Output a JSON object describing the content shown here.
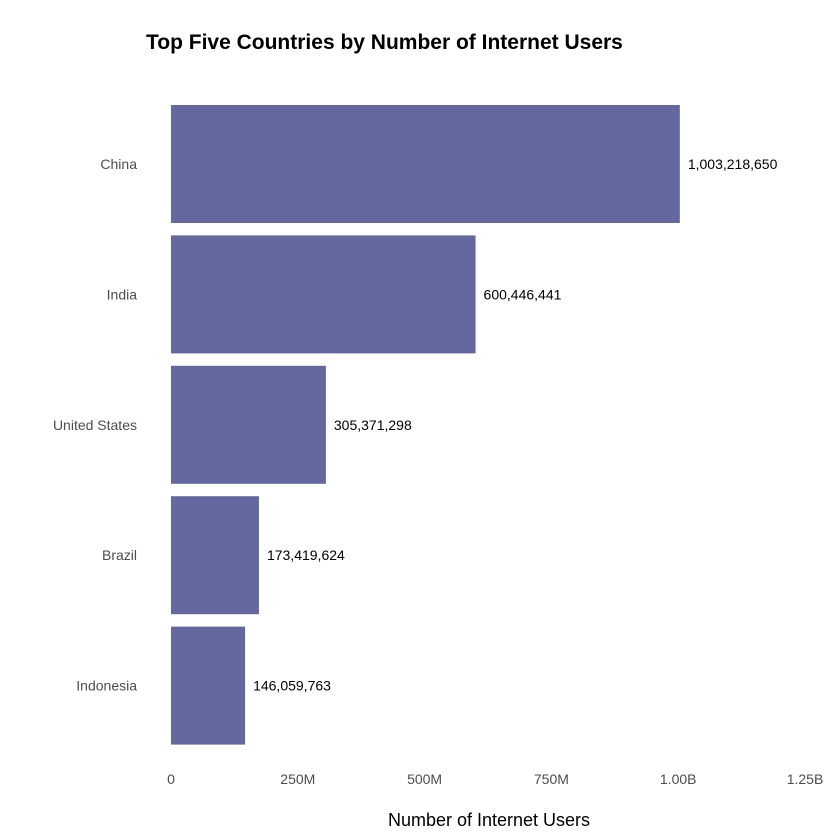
{
  "chart_data": {
    "type": "bar",
    "orientation": "horizontal",
    "title": "Top Five Countries by Number of Internet Users",
    "xlabel": "Number of Internet Users",
    "ylabel": "",
    "categories": [
      "China",
      "India",
      "United States",
      "Brazil",
      "Indonesia"
    ],
    "values": [
      1003218650,
      600446441,
      305371298,
      173419624,
      146059763
    ],
    "value_labels": [
      "1,003,218,650",
      "600,446,441",
      "305,371,298",
      "173,419,624",
      "146,059,763"
    ],
    "xlim": [
      0,
      1250000000
    ],
    "x_ticks": [
      0,
      250000000,
      500000000,
      750000000,
      1000000000,
      1250000000
    ],
    "x_tick_labels": [
      "0",
      "250M",
      "500M",
      "750M",
      "1.00B",
      "1.25B"
    ],
    "bar_color": "#65689f",
    "grid": false,
    "legend": "none"
  }
}
